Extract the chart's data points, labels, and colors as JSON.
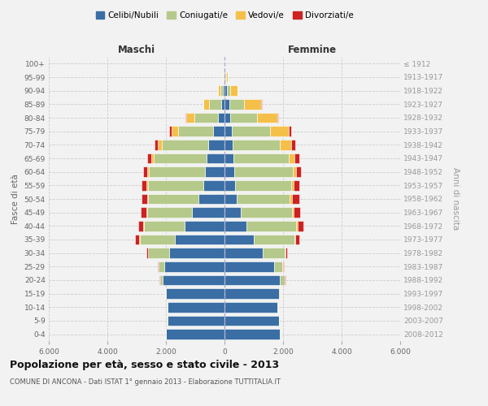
{
  "age_groups": [
    "0-4",
    "5-9",
    "10-14",
    "15-19",
    "20-24",
    "25-29",
    "30-34",
    "35-39",
    "40-44",
    "45-49",
    "50-54",
    "55-59",
    "60-64",
    "65-69",
    "70-74",
    "75-79",
    "80-84",
    "85-89",
    "90-94",
    "95-99",
    "100+"
  ],
  "birth_years": [
    "2008-2012",
    "2003-2007",
    "1998-2002",
    "1993-1997",
    "1988-1992",
    "1983-1987",
    "1978-1982",
    "1973-1977",
    "1968-1972",
    "1963-1967",
    "1958-1962",
    "1953-1957",
    "1948-1952",
    "1943-1947",
    "1938-1942",
    "1933-1937",
    "1928-1932",
    "1923-1927",
    "1918-1922",
    "1913-1917",
    "≤ 1912"
  ],
  "colors": {
    "celibe": "#3a6ea5",
    "coniugato": "#b5c98a",
    "vedovo": "#f5c04a",
    "divorziato": "#cc2222"
  },
  "maschi": {
    "celibe": [
      2000,
      1950,
      1950,
      2000,
      2100,
      2050,
      1900,
      1700,
      1350,
      1100,
      900,
      720,
      680,
      620,
      550,
      380,
      220,
      120,
      50,
      20,
      10
    ],
    "coniugato": [
      5,
      10,
      20,
      30,
      100,
      200,
      700,
      1200,
      1400,
      1550,
      1700,
      1900,
      1900,
      1800,
      1600,
      1200,
      800,
      400,
      80,
      15,
      5
    ],
    "vedovo": [
      5,
      5,
      5,
      5,
      5,
      10,
      15,
      20,
      25,
      30,
      40,
      50,
      60,
      80,
      120,
      220,
      280,
      200,
      80,
      20,
      5
    ],
    "divorziato": [
      2,
      2,
      3,
      5,
      10,
      20,
      60,
      140,
      170,
      180,
      200,
      170,
      140,
      130,
      120,
      80,
      30,
      10,
      5,
      0,
      0
    ]
  },
  "femmine": {
    "nubile": [
      1900,
      1850,
      1800,
      1850,
      1900,
      1700,
      1300,
      1000,
      750,
      550,
      430,
      370,
      330,
      300,
      280,
      250,
      200,
      160,
      70,
      25,
      10
    ],
    "coniugata": [
      8,
      15,
      30,
      50,
      150,
      280,
      750,
      1400,
      1700,
      1750,
      1800,
      1900,
      2000,
      1900,
      1600,
      1300,
      900,
      500,
      120,
      20,
      5
    ],
    "vedova": [
      5,
      5,
      5,
      5,
      10,
      15,
      25,
      30,
      40,
      50,
      70,
      90,
      120,
      200,
      400,
      650,
      700,
      600,
      250,
      70,
      10
    ],
    "divorziata": [
      2,
      2,
      3,
      5,
      15,
      20,
      60,
      130,
      200,
      230,
      250,
      200,
      160,
      150,
      130,
      80,
      30,
      15,
      5,
      0,
      0
    ]
  },
  "xlim": 6000,
  "xlabel_ticks": [
    -6000,
    -4000,
    -2000,
    0,
    2000,
    4000,
    6000
  ],
  "xlabel_labels": [
    "6.000",
    "4.000",
    "2.000",
    "0",
    "2.000",
    "4.000",
    "6.000"
  ],
  "title": "Popolazione per età, sesso e stato civile - 2013",
  "subtitle": "COMUNE DI ANCONA - Dati ISTAT 1° gennaio 2013 - Elaborazione TUTTITALIA.IT",
  "maschi_label": "Maschi",
  "femmine_label": "Femmine",
  "ylabel": "Fasce di età",
  "ylabel2": "Anni di nascita",
  "legend_labels": [
    "Celibi/Nubili",
    "Coniugati/e",
    "Vedovi/e",
    "Divorziati/e"
  ],
  "background_color": "#f2f2f2",
  "bar_height": 0.75
}
